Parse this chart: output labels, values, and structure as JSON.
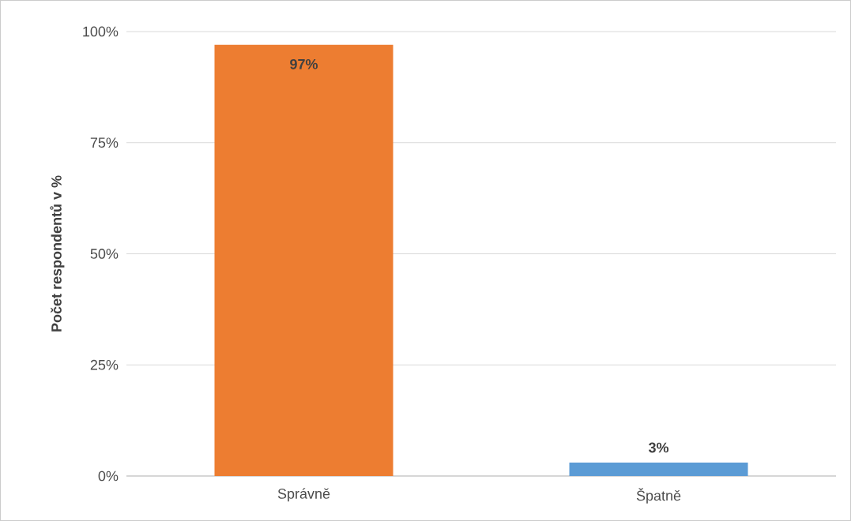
{
  "chart_data": {
    "type": "bar",
    "ylabel": "Počet respondentů v %",
    "categories": [
      "Správně",
      "Špatně"
    ],
    "values": [
      97,
      3
    ],
    "colors": [
      "#ed7d31",
      "#5b9bd5"
    ],
    "value_labels": [
      "97%",
      "3%"
    ],
    "ylim": [
      0,
      100
    ],
    "yticks": [
      {
        "value": 0,
        "label": "0%"
      },
      {
        "value": 25,
        "label": "25%"
      },
      {
        "value": 50,
        "label": "50%"
      },
      {
        "value": 75,
        "label": "75%"
      },
      {
        "value": 100,
        "label": "100%"
      }
    ],
    "grid": "y"
  }
}
